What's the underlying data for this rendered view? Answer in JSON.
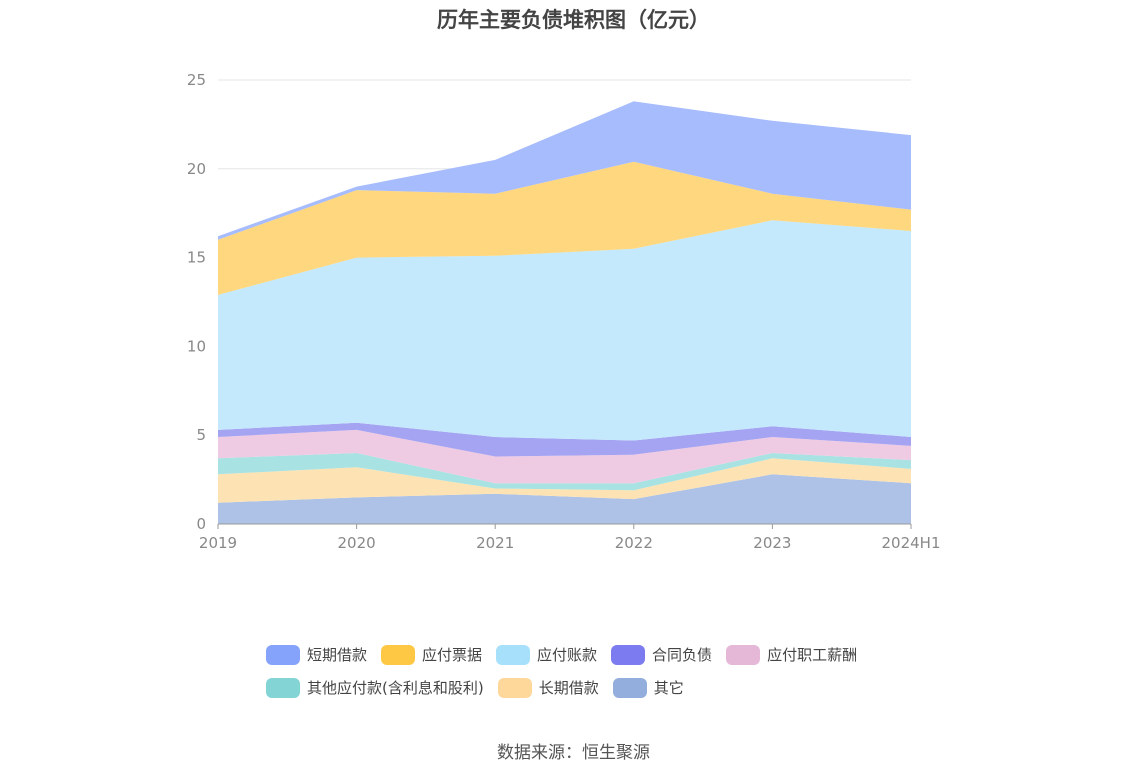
{
  "chart_data": {
    "type": "area",
    "stacked": true,
    "title": "历年主要负债堆积图（亿元）",
    "x": [
      "2019",
      "2020",
      "2021",
      "2022",
      "2023",
      "2024H1"
    ],
    "ylim": [
      0,
      25
    ],
    "yticks": [
      0,
      5,
      10,
      15,
      20,
      25
    ],
    "grid": true,
    "legend_position": "bottom",
    "series": [
      {
        "name": "其它",
        "color": "#adc2e6",
        "values": [
          1.2,
          1.5,
          1.7,
          1.4,
          2.8,
          2.3
        ]
      },
      {
        "name": "长期借款",
        "color": "#fde3b4",
        "values": [
          1.6,
          1.7,
          0.3,
          0.5,
          0.9,
          0.8
        ]
      },
      {
        "name": "其他应付款(含利息和股利)",
        "color": "#a9e2e2",
        "values": [
          0.9,
          0.8,
          0.3,
          0.4,
          0.3,
          0.5
        ]
      },
      {
        "name": "应付职工薪酬",
        "color": "#efcbe3",
        "values": [
          1.2,
          1.3,
          1.5,
          1.6,
          0.9,
          0.8
        ]
      },
      {
        "name": "合同负债",
        "color": "#a5a4f2",
        "values": [
          0.4,
          0.4,
          1.1,
          0.8,
          0.6,
          0.5
        ]
      },
      {
        "name": "应付账款",
        "color": "#c4e9fc",
        "values": [
          7.6,
          9.3,
          10.2,
          10.8,
          11.6,
          11.6
        ]
      },
      {
        "name": "应付票据",
        "color": "#fed77e",
        "values": [
          3.1,
          3.8,
          3.5,
          4.9,
          1.5,
          1.2
        ]
      },
      {
        "name": "短期借款",
        "color": "#a7bcfd",
        "values": [
          0.2,
          0.2,
          1.9,
          3.4,
          4.1,
          4.2
        ]
      }
    ]
  },
  "legend": [
    [
      {
        "label": "短期借款",
        "color": "#86a3fc"
      },
      {
        "label": "应付票据",
        "color": "#fec844"
      },
      {
        "label": "应付账款",
        "color": "#a6e0fb"
      },
      {
        "label": "合同负债",
        "color": "#7c7bf0"
      },
      {
        "label": "应付职工薪酬",
        "color": "#e6b8d8"
      }
    ],
    [
      {
        "label": "其他应付款(含利息和股利)",
        "color": "#82d4d5"
      },
      {
        "label": "长期借款",
        "color": "#fdd89a"
      },
      {
        "label": "其它",
        "color": "#93addd"
      }
    ]
  ],
  "source": "数据来源：恒生聚源"
}
